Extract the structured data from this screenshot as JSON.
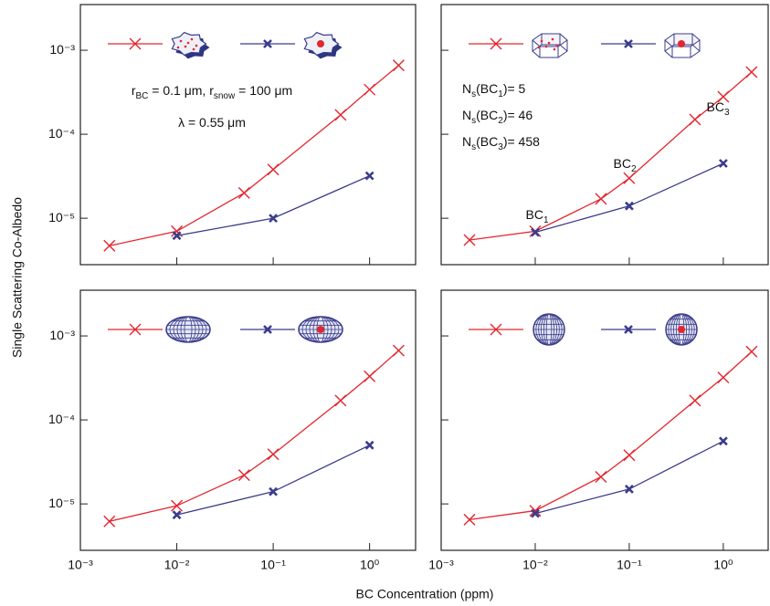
{
  "ylabel": "Single Scattering Co-Albedo",
  "xlabel": "BC Concentration (ppm)",
  "chart_data": [
    {
      "type": "line",
      "xscale": "log",
      "yscale": "log",
      "xlim": [
        0.001,
        3
      ],
      "ylim": [
        2.8e-06,
        0.0035
      ],
      "xticks": [
        0.001,
        0.01,
        0.1,
        1
      ],
      "yticks": [
        {
          "value": 1e-05,
          "label": "10⁻⁵"
        },
        {
          "value": 0.0001,
          "label": "10⁻⁴"
        },
        {
          "value": 0.001,
          "label": "10⁻³"
        }
      ],
      "series": [
        {
          "color": "#e3262d",
          "marker": "x",
          "x": [
            0.002,
            0.01,
            0.05,
            0.1,
            0.5,
            1,
            2
          ],
          "values": [
            4.7e-06,
            7e-06,
            2e-05,
            3.8e-05,
            0.00017,
            0.00034,
            0.00066
          ]
        },
        {
          "color": "#3b3c8c",
          "marker": "bold-x",
          "x": [
            0.01,
            0.1,
            1
          ],
          "values": [
            6.2e-06,
            1e-05,
            3.2e-05
          ]
        }
      ],
      "annotations": [
        {
          "segments": [
            {
              "text": "r"
            },
            {
              "sub": "BC"
            },
            {
              "text": " = 0.1 μm, r"
            },
            {
              "sub": "snow"
            },
            {
              "text": " = 100 μm"
            }
          ]
        },
        {
          "segments": [
            {
              "text": "λ = 0.55 μm"
            }
          ]
        }
      ]
    },
    {
      "type": "line",
      "xscale": "log",
      "yscale": "log",
      "xlim": [
        0.001,
        3
      ],
      "ylim": [
        2.8e-06,
        0.0035
      ],
      "xticks": [
        0.001,
        0.01,
        0.1,
        1
      ],
      "yticks": [
        1e-05,
        0.0001,
        0.001
      ],
      "series": [
        {
          "color": "#e3262d",
          "marker": "x",
          "x": [
            0.002,
            0.01,
            0.05,
            0.1,
            0.5,
            1,
            2
          ],
          "values": [
            5.5e-06,
            7e-06,
            1.7e-05,
            3e-05,
            0.00015,
            0.00028,
            0.00055
          ]
        },
        {
          "color": "#3b3c8c",
          "marker": "bold-x",
          "x": [
            0.01,
            0.1,
            1
          ],
          "values": [
            6.8e-06,
            1.4e-05,
            4.5e-05
          ]
        }
      ],
      "annotations": [
        {
          "segments": [
            {
              "text": "N"
            },
            {
              "sub": "s"
            },
            {
              "text": "(BC"
            },
            {
              "sub": "1"
            },
            {
              "text": ")= 5"
            }
          ]
        },
        {
          "segments": [
            {
              "text": "N"
            },
            {
              "sub": "s"
            },
            {
              "text": "(BC"
            },
            {
              "sub": "2"
            },
            {
              "text": ")= 46"
            }
          ]
        },
        {
          "segments": [
            {
              "text": "N"
            },
            {
              "sub": "s"
            },
            {
              "text": "(BC"
            },
            {
              "sub": "3"
            },
            {
              "text": ")= 458"
            }
          ]
        },
        {
          "segments": [
            {
              "text": "BC"
            },
            {
              "sub": "1"
            }
          ]
        },
        {
          "segments": [
            {
              "text": "BC"
            },
            {
              "sub": "2"
            }
          ]
        },
        {
          "segments": [
            {
              "text": "BC"
            },
            {
              "sub": "3"
            }
          ]
        }
      ]
    },
    {
      "type": "line",
      "xscale": "log",
      "yscale": "log",
      "xlim": [
        0.001,
        3
      ],
      "ylim": [
        2.8e-06,
        0.0035
      ],
      "xticks": [
        {
          "value": 0.001,
          "label": "10⁻³"
        },
        {
          "value": 0.01,
          "label": "10⁻²"
        },
        {
          "value": 0.1,
          "label": "10⁻¹"
        },
        {
          "value": 1,
          "label": "10⁰"
        }
      ],
      "yticks": [
        {
          "value": 1e-05,
          "label": "10⁻⁵"
        },
        {
          "value": 0.0001,
          "label": "10⁻⁴"
        },
        {
          "value": 0.001,
          "label": "10⁻³"
        }
      ],
      "series": [
        {
          "color": "#e3262d",
          "marker": "x",
          "x": [
            0.002,
            0.01,
            0.05,
            0.1,
            0.5,
            1,
            2
          ],
          "values": [
            6.2e-06,
            9.5e-06,
            2.2e-05,
            3.9e-05,
            0.00017,
            0.00033,
            0.00067
          ]
        },
        {
          "color": "#3b3c8c",
          "marker": "bold-x",
          "x": [
            0.01,
            0.1,
            1
          ],
          "values": [
            7.4e-06,
            1.4e-05,
            5e-05
          ]
        }
      ]
    },
    {
      "type": "line",
      "xscale": "log",
      "yscale": "log",
      "xlim": [
        0.001,
        3
      ],
      "ylim": [
        2.8e-06,
        0.0035
      ],
      "xticks": [
        {
          "value": 0.001,
          "label": "10⁻³"
        },
        {
          "value": 0.01,
          "label": "10⁻²"
        },
        {
          "value": 0.1,
          "label": "10⁻¹"
        },
        {
          "value": 1,
          "label": "10⁰"
        }
      ],
      "yticks": [
        1e-05,
        0.0001,
        0.001
      ],
      "series": [
        {
          "color": "#e3262d",
          "marker": "x",
          "x": [
            0.002,
            0.01,
            0.05,
            0.1,
            0.5,
            1,
            2
          ],
          "values": [
            6.5e-06,
            8.3e-06,
            2.1e-05,
            3.8e-05,
            0.00017,
            0.00032,
            0.00065
          ]
        },
        {
          "color": "#3b3c8c",
          "marker": "bold-x",
          "x": [
            0.01,
            0.1,
            1
          ],
          "values": [
            7.7e-06,
            1.5e-05,
            5.6e-05
          ]
        }
      ]
    }
  ]
}
